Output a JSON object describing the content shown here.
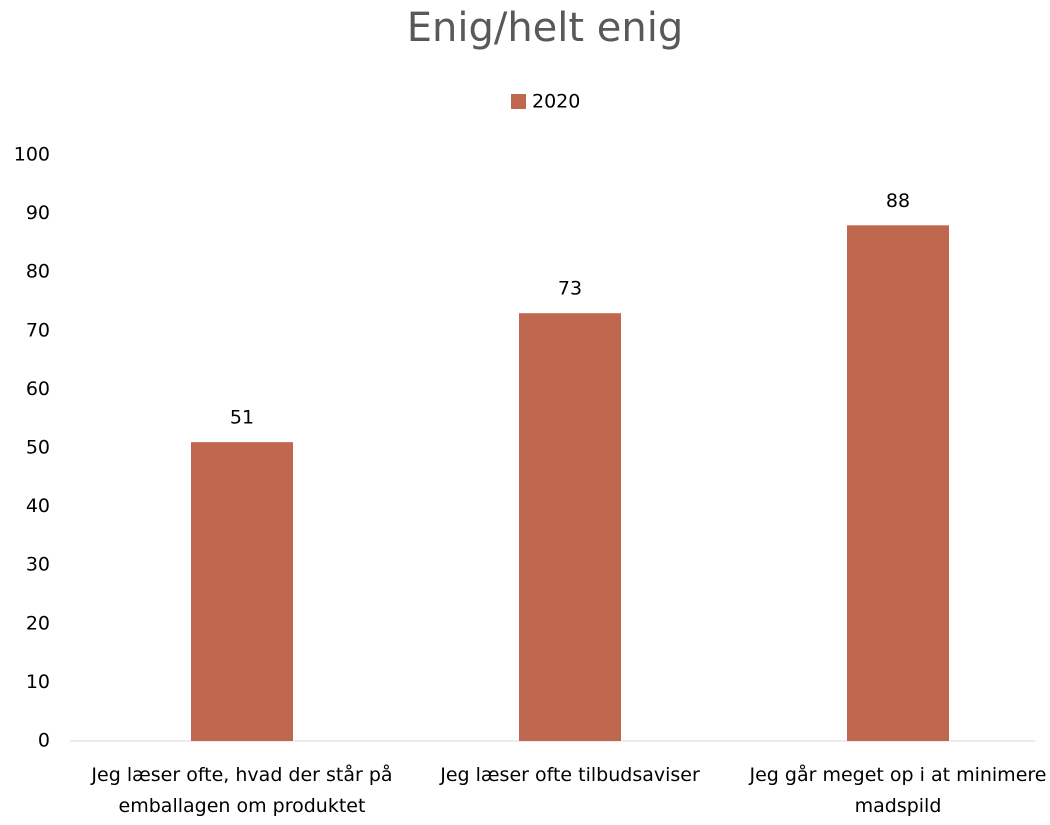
{
  "chart_data": {
    "type": "bar",
    "title": "Enig/helt enig",
    "categories": [
      "Jeg læser ofte, hvad der står på emballagen om produktet",
      "Jeg læser ofte tilbudsaviser",
      "Jeg går meget op i at minimere madspild"
    ],
    "series": [
      {
        "name": "2020",
        "color": "#c0674f",
        "values": [
          51,
          73,
          88
        ]
      }
    ],
    "ylim": [
      0,
      100
    ],
    "yticks": [
      0,
      10,
      20,
      30,
      40,
      50,
      60,
      70,
      80,
      90,
      100
    ],
    "grid": false,
    "legend": "top"
  }
}
